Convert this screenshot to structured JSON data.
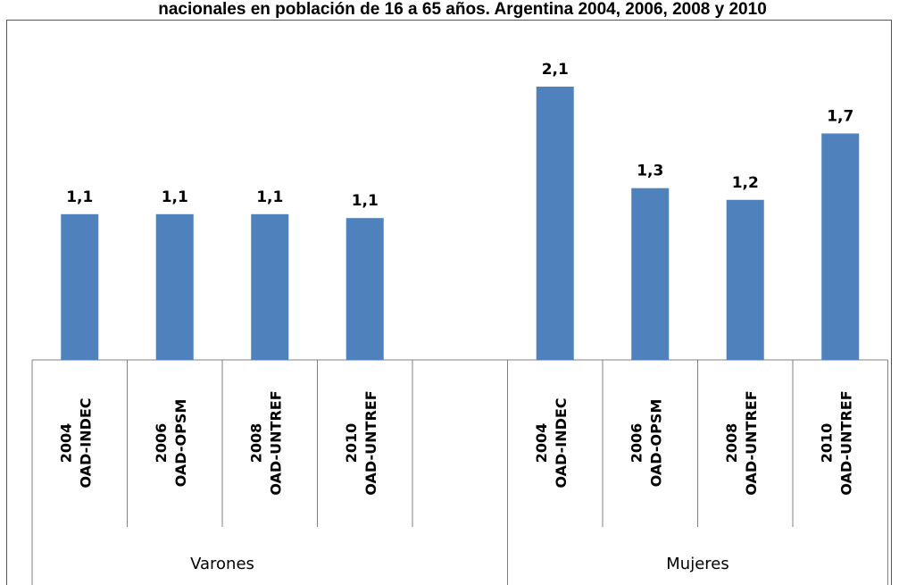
{
  "chart_data": {
    "type": "bar",
    "title": "nacionales en población de 16 a 65 años. Argentina 2004, 2006, 2008 y 2010",
    "groups": [
      {
        "name": "Varones",
        "categories": [
          {
            "year": "2004",
            "source": "OAD-INDEC"
          },
          {
            "year": "2006",
            "source": "OAD-OPSM"
          },
          {
            "year": "2008",
            "source": "OAD-UNTREF"
          },
          {
            "year": "2010",
            "source": "OAD-UNTREF"
          }
        ],
        "values": [
          1.12,
          1.12,
          1.12,
          1.09
        ],
        "labels": [
          "1,1",
          "1,1",
          "1,1",
          "1,1"
        ]
      },
      {
        "name": "Mujeres",
        "categories": [
          {
            "year": "2004",
            "source": "OAD-INDEC"
          },
          {
            "year": "2006",
            "source": "OAD-OPSM"
          },
          {
            "year": "2008",
            "source": "OAD-UNTREF"
          },
          {
            "year": "2010",
            "source": "OAD-UNTREF"
          }
        ],
        "values": [
          2.1,
          1.32,
          1.23,
          1.74
        ],
        "labels": [
          "2,1",
          "1,3",
          "1,2",
          "1,7"
        ]
      }
    ],
    "ylim": [
      0,
      2.35
    ],
    "grid": false,
    "legend": "none",
    "bar_color": "#4f81bd"
  }
}
